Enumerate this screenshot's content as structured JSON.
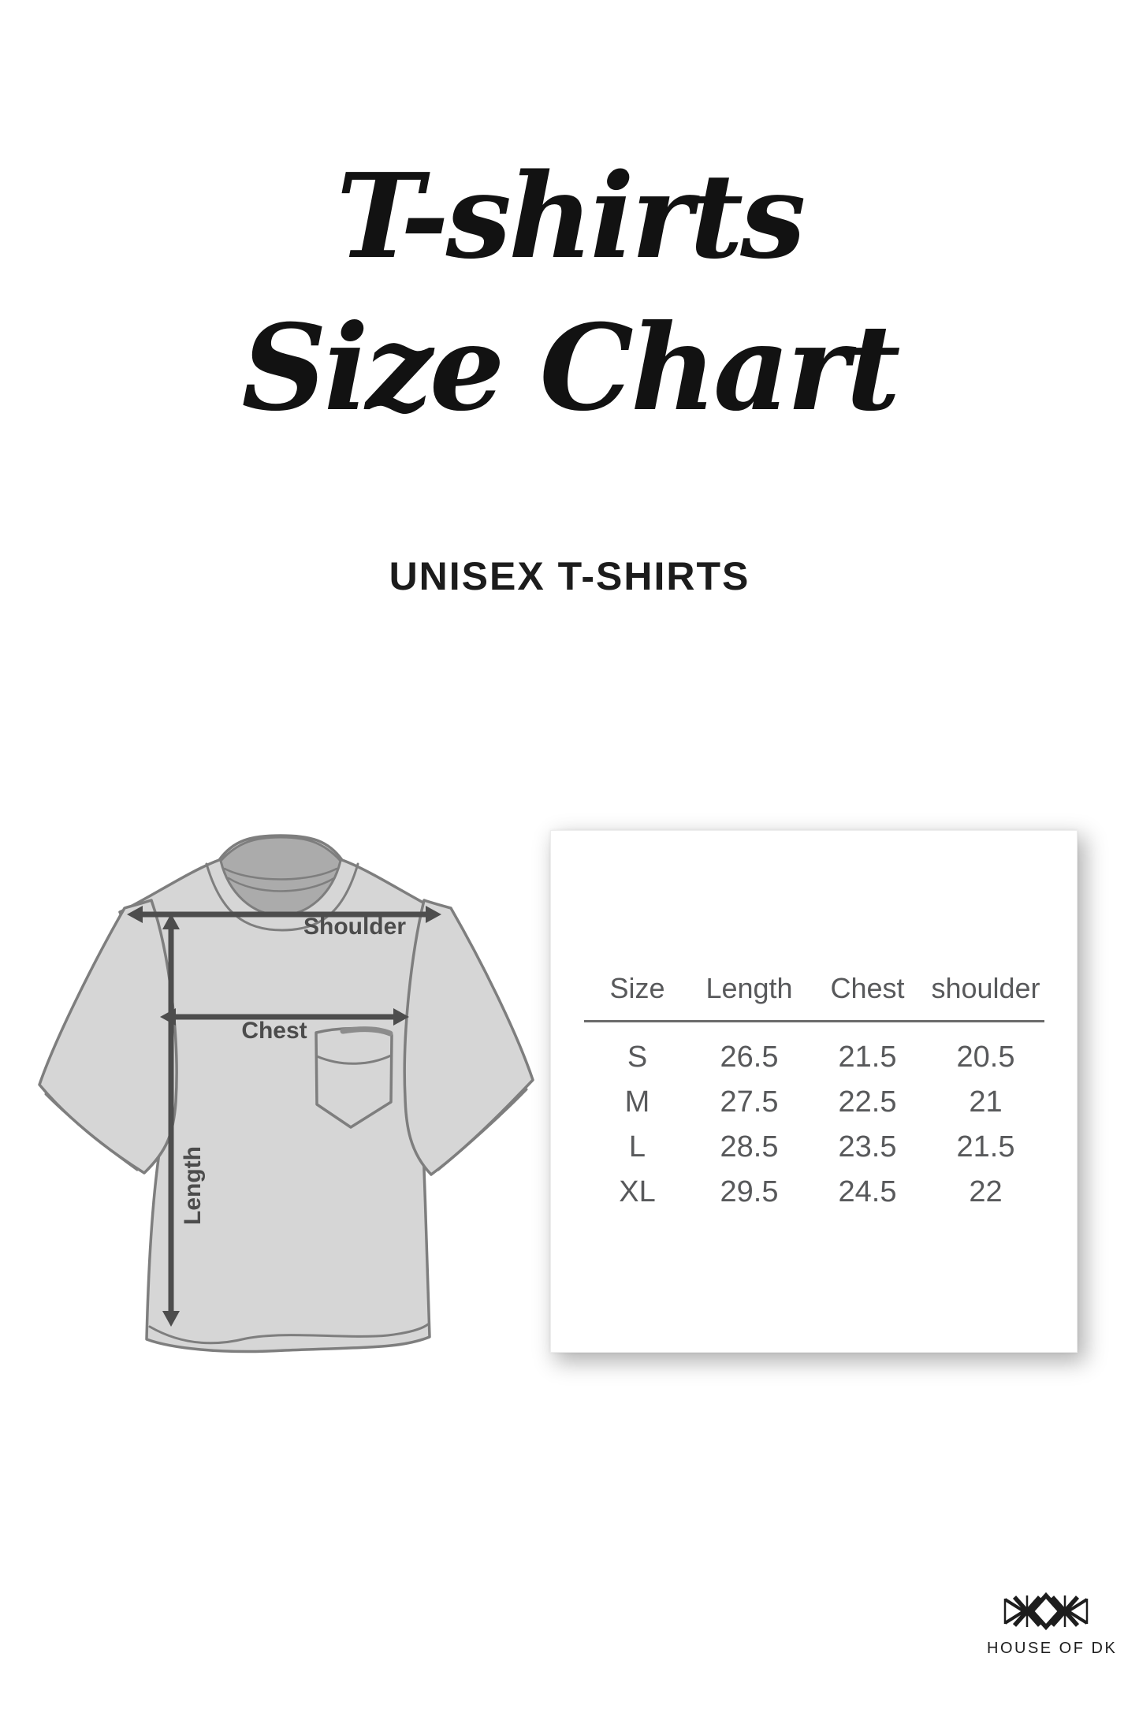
{
  "title": {
    "line1": "T-shirts",
    "line2": "Size Chart"
  },
  "subtitle": "UNISEX T-SHIRTS",
  "diagram": {
    "shoulder_label": "Shoulder",
    "chest_label": "Chest",
    "length_label": "Length"
  },
  "size_table": {
    "columns": [
      "Size",
      "Length",
      "Chest",
      "shoulder"
    ],
    "rows": [
      [
        "S",
        "26.5",
        "21.5",
        "20.5"
      ],
      [
        "M",
        "27.5",
        "22.5",
        "21"
      ],
      [
        "L",
        "28.5",
        "23.5",
        "21.5"
      ],
      [
        "XL",
        "29.5",
        "24.5",
        "22"
      ]
    ]
  },
  "brand": {
    "name": "HOUSE OF DK",
    "logo_icon": "house-of-dk-monogram"
  },
  "colors": {
    "background": "#ffffff",
    "title_text": "#121212",
    "subtitle_text": "#1c1c1c",
    "shirt_fill": "#d6d6d6",
    "shirt_outline": "#7e7e7e",
    "collar_fill": "#ababab",
    "pocket_accent": "#8c8c8c",
    "arrow": "#4d4d4d",
    "diagram_label": "#4c4c4c",
    "table_text": "#58595b",
    "table_rule": "#6b6b6b",
    "card_background": "#ffffff",
    "logo": "#1d1d1d"
  }
}
